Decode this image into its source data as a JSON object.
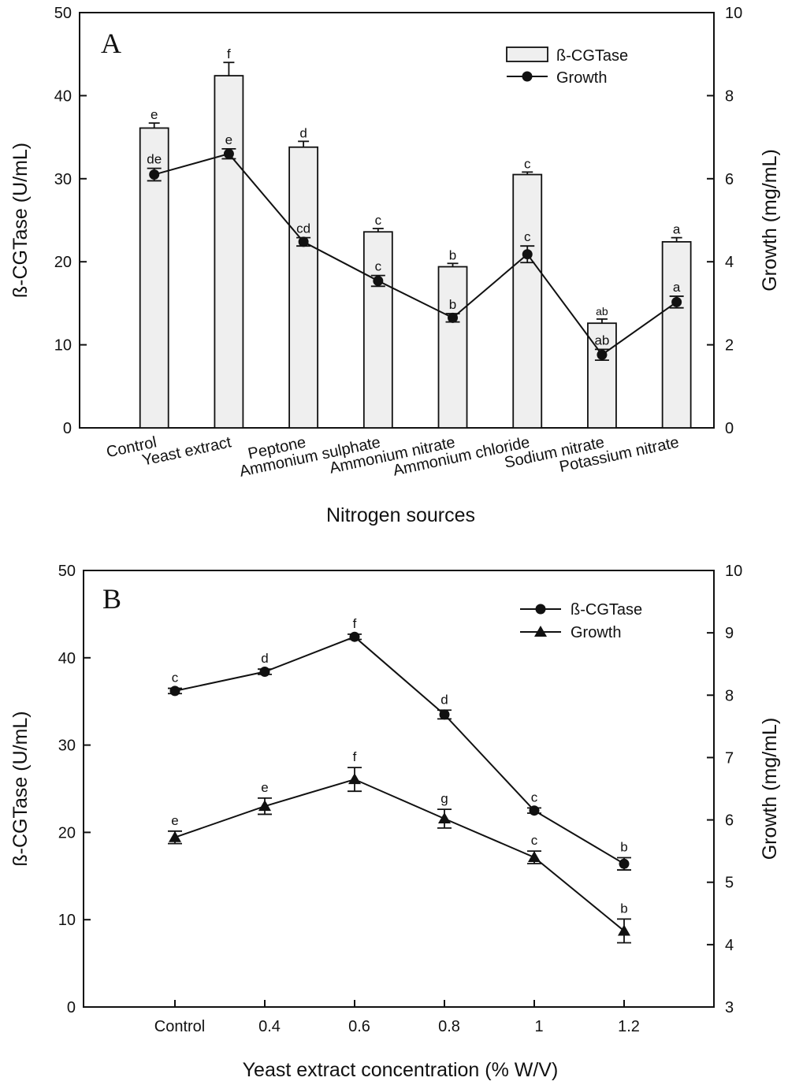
{
  "chart_data": [
    {
      "panel": "A",
      "type": "bar",
      "xlabel": "Nitrogen sources",
      "ylabel": "ß-CGTase (U/mL)",
      "y2label": "Growth (mg/mL)",
      "ylim": [
        0,
        50
      ],
      "y2lim": [
        0,
        10
      ],
      "yticks": [
        "0",
        "10",
        "20",
        "30",
        "40",
        "50"
      ],
      "y2ticks": [
        "0",
        "2",
        "4",
        "6",
        "8",
        "10"
      ],
      "categories": [
        "Control",
        "Yeast extract",
        "Peptone",
        "Ammonium sulphate",
        "Ammonium nitrate",
        "Ammonium chloride",
        "Sodium nitrate",
        "Potassium nitrate"
      ],
      "legend": [
        "ß-CGTase",
        "Growth"
      ],
      "legend_position": "top-right",
      "series": [
        {
          "name": "ß-CGTase",
          "kind": "bar",
          "axis": "left",
          "values": [
            36.1,
            42.4,
            33.8,
            23.6,
            19.4,
            30.5,
            12.6,
            22.4
          ],
          "errors": [
            0.6,
            1.6,
            0.7,
            0.4,
            0.4,
            0.3,
            0.5,
            0.5
          ],
          "labels": [
            "e",
            "f",
            "d",
            "c",
            "b",
            "c",
            "ab",
            "a"
          ]
        },
        {
          "name": "Growth",
          "kind": "line",
          "axis": "right",
          "values": [
            6.1,
            6.6,
            4.48,
            3.54,
            2.65,
            4.18,
            1.76,
            3.03
          ],
          "errors": [
            0.15,
            0.12,
            0.1,
            0.13,
            0.1,
            0.2,
            0.13,
            0.14
          ],
          "labels": [
            "de",
            "e",
            "cd",
            "c",
            "b",
            "c",
            "ab",
            "a"
          ]
        }
      ]
    },
    {
      "panel": "B",
      "type": "line",
      "xlabel": "Yeast extract concentration (% W/V)",
      "ylabel": "ß-CGTase (U/mL)",
      "y2label": "Growth (mg/mL)",
      "ylim": [
        0,
        50
      ],
      "y2lim": [
        3,
        10
      ],
      "yticks": [
        "0",
        "10",
        "20",
        "30",
        "40",
        "50"
      ],
      "y2ticks": [
        "3",
        "4",
        "5",
        "6",
        "7",
        "8",
        "9",
        "10"
      ],
      "categories": [
        "Control",
        "0.4",
        "0.6",
        "0.8",
        "1",
        "1.2"
      ],
      "legend": [
        "ß-CGTase",
        "Growth"
      ],
      "legend_position": "top-right",
      "series": [
        {
          "name": "ß-CGTase",
          "marker": "circle",
          "axis": "left",
          "values": [
            36.2,
            38.4,
            42.4,
            33.5,
            22.5,
            16.4
          ],
          "errors": [
            0.3,
            0.3,
            0.3,
            0.5,
            0.3,
            0.7
          ],
          "labels": [
            "c",
            "d",
            "f",
            "d",
            "c",
            "b"
          ]
        },
        {
          "name": "Growth",
          "marker": "triangle",
          "axis": "right",
          "values": [
            5.72,
            6.22,
            6.65,
            6.02,
            5.4,
            4.22
          ],
          "errors": [
            0.1,
            0.13,
            0.19,
            0.15,
            0.1,
            0.19
          ],
          "labels": [
            "e",
            "e",
            "f",
            "g",
            "c",
            "b"
          ]
        }
      ]
    }
  ]
}
